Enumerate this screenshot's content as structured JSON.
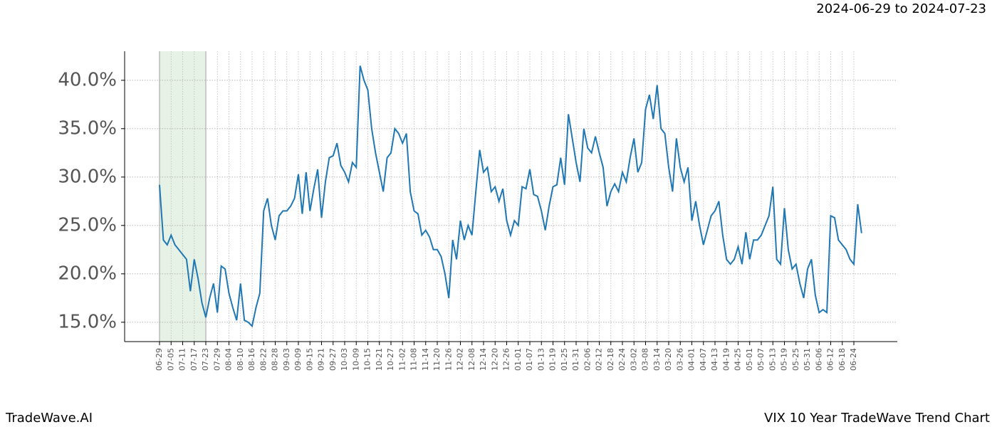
{
  "chart_data": {
    "type": "line",
    "range_label": "2024-06-29 to 2024-07-23",
    "footer_left": "TradeWave.AI",
    "footer_right": "VIX 10 Year TradeWave Trend Chart",
    "highlight": [
      "06-29",
      "07-23"
    ],
    "categories": [
      "06-29",
      null,
      null,
      "07-05",
      null,
      null,
      "07-11",
      null,
      null,
      "07-17",
      null,
      null,
      "07-23",
      null,
      null,
      "07-29",
      null,
      null,
      "08-04",
      null,
      null,
      "08-10",
      null,
      null,
      "08-16",
      null,
      null,
      "08-22",
      null,
      null,
      "08-28",
      null,
      null,
      "09-03",
      null,
      null,
      "09-09",
      null,
      null,
      "09-15",
      null,
      null,
      "09-21",
      null,
      null,
      "09-27",
      null,
      null,
      "10-03",
      null,
      null,
      "10-09",
      null,
      null,
      "10-15",
      null,
      null,
      "10-21",
      null,
      null,
      "10-27",
      null,
      null,
      "11-02",
      null,
      null,
      "11-08",
      null,
      null,
      "11-14",
      null,
      null,
      "11-20",
      null,
      null,
      "11-26",
      null,
      null,
      "12-02",
      null,
      null,
      "12-08",
      null,
      null,
      "12-14",
      null,
      null,
      "12-20",
      null,
      null,
      "12-26",
      null,
      null,
      "01-01",
      null,
      null,
      "01-07",
      null,
      null,
      "01-13",
      null,
      null,
      "01-19",
      null,
      null,
      "01-25",
      null,
      null,
      "01-31",
      null,
      null,
      "02-06",
      null,
      null,
      "02-12",
      null,
      null,
      "02-18",
      null,
      null,
      "02-24",
      null,
      null,
      "03-02",
      null,
      null,
      "03-08",
      null,
      null,
      "03-14",
      null,
      null,
      "03-20",
      null,
      null,
      "03-26",
      null,
      null,
      "04-01",
      null,
      null,
      "04-07",
      null,
      null,
      "04-13",
      null,
      null,
      "04-19",
      null,
      null,
      "04-25",
      null,
      null,
      "05-01",
      null,
      null,
      "05-07",
      null,
      null,
      "05-13",
      null,
      null,
      "05-19",
      null,
      null,
      "05-25",
      null,
      null,
      "05-31",
      null,
      null,
      "06-06",
      null,
      null,
      "06-12",
      null,
      null,
      "06-18",
      null,
      null,
      "06-24",
      null,
      null
    ],
    "series": [
      {
        "color": "#1f77b4",
        "values": [
          29.2,
          23.5,
          23.0,
          24.0,
          23.0,
          22.5,
          22.0,
          21.5,
          18.2,
          21.5,
          19.5,
          17.0,
          15.5,
          17.5,
          19.0,
          16.0,
          20.8,
          20.5,
          18.0,
          16.5,
          15.2,
          19.0,
          15.2,
          15.0,
          14.6,
          16.5,
          18.0,
          26.5,
          27.8,
          25.0,
          23.5,
          26.0,
          26.5,
          26.5,
          27.0,
          27.8,
          30.3,
          26.2,
          30.5,
          26.5,
          28.8,
          30.8,
          25.8,
          29.5,
          32.0,
          32.2,
          33.5,
          31.2,
          30.5,
          29.5,
          31.5,
          31.0,
          41.5,
          40.0,
          39.0,
          35.0,
          32.5,
          30.5,
          28.5,
          32.0,
          32.5,
          35.0,
          34.5,
          33.5,
          34.5,
          28.5,
          26.5,
          26.2,
          24.0,
          24.5,
          23.8,
          22.5,
          22.5,
          21.8,
          20.0,
          17.5,
          23.5,
          21.5,
          25.5,
          23.5,
          25.0,
          24.0,
          28.5,
          32.8,
          30.5,
          31.0,
          28.5,
          29.0,
          27.5,
          28.8,
          25.5,
          24.0,
          25.5,
          25.0,
          29.0,
          28.8,
          30.8,
          28.2,
          28.0,
          26.5,
          24.5,
          27.0,
          29.0,
          29.2,
          32.0,
          29.2,
          36.5,
          34.0,
          31.5,
          29.5,
          35.0,
          33.0,
          32.5,
          34.2,
          32.5,
          31.0,
          27.0,
          28.5,
          29.3,
          28.5,
          30.5,
          29.5,
          32.0,
          34.0,
          30.5,
          31.5,
          37.0,
          38.5,
          36.0,
          39.5,
          35.0,
          34.5,
          31.0,
          28.5,
          34.0,
          31.0,
          29.5,
          31.0,
          25.5,
          27.5,
          25.0,
          23.0,
          24.5,
          26.0,
          26.5,
          27.5,
          24.0,
          21.5,
          21.0,
          21.5,
          22.8,
          21.0,
          24.3,
          21.5,
          23.5,
          23.5,
          24.0,
          25.0,
          26.0,
          29.0,
          21.5,
          21.0,
          26.8,
          22.5,
          20.5,
          21.0,
          19.0,
          17.5,
          20.5,
          21.5,
          17.8,
          16.0,
          16.3,
          16.0,
          26.0,
          25.8,
          23.5,
          23.0,
          22.5,
          21.5,
          21.0,
          27.2,
          24.2
        ]
      }
    ],
    "ylim": [
      13.0,
      43.0
    ],
    "yticks": [
      {
        "value": 15,
        "label": "15.0%"
      },
      {
        "value": 20,
        "label": "20.0%"
      },
      {
        "value": 25,
        "label": "25.0%"
      },
      {
        "value": 30,
        "label": "30.0%"
      },
      {
        "value": 35,
        "label": "35.0%"
      },
      {
        "value": 40,
        "label": "40.0%"
      }
    ],
    "grid": true
  }
}
